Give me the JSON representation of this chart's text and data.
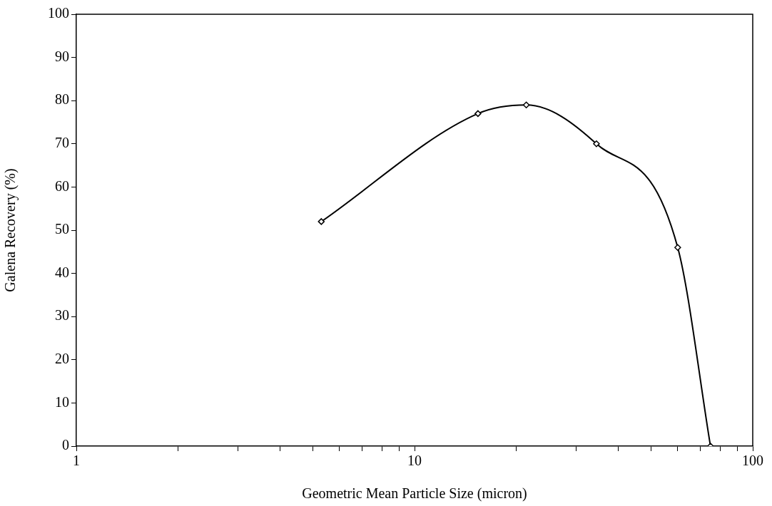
{
  "chart_data": {
    "type": "line",
    "xlabel": "Geometric Mean Particle Size (micron)",
    "ylabel": "Galena Recovery (%)",
    "x": [
      5.3,
      15.4,
      21.4,
      34.5,
      60,
      75
    ],
    "series": [
      {
        "color": "#000000",
        "values": [
          52,
          77,
          79,
          70,
          46,
          0
        ]
      }
    ],
    "log": "x",
    "xlim": [
      1,
      100
    ],
    "xticks": [
      1,
      {
        "value": 2,
        "label": null
      },
      {
        "value": 3,
        "label": null
      },
      {
        "value": 4,
        "label": null
      },
      {
        "value": 5,
        "label": null
      },
      {
        "value": 6,
        "label": null
      },
      {
        "value": 7,
        "label": null
      },
      {
        "value": 8,
        "label": null
      },
      {
        "value": 9,
        "label": null
      },
      10,
      {
        "value": 20,
        "label": null
      },
      {
        "value": 30,
        "label": null
      },
      {
        "value": 40,
        "label": null
      },
      {
        "value": 50,
        "label": null
      },
      {
        "value": 60,
        "label": null
      },
      {
        "value": 70,
        "label": null
      },
      {
        "value": 80,
        "label": null
      },
      {
        "value": 90,
        "label": null
      },
      100
    ],
    "ylim": [
      0,
      100
    ],
    "yticks": [
      0,
      10,
      20,
      30,
      40,
      50,
      60,
      70,
      80,
      90,
      100
    ],
    "grid": false,
    "legend": false,
    "marker": "diamond",
    "line_style": "solid"
  }
}
